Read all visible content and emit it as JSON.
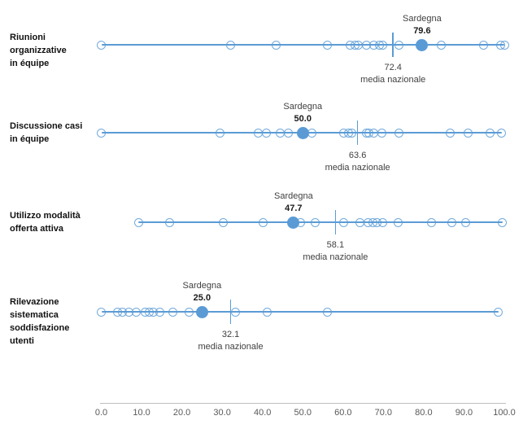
{
  "colors": {
    "accent": "#5B9BD5",
    "circle_stroke": "rgba(91,155,213,0.85)",
    "axis_line": "#BFBFBF",
    "label_text": "#111111",
    "annotation_text": "#404040",
    "axis_text": "#595959"
  },
  "chart_data": {
    "type": "scatter",
    "subtype": "horizontal-dot-plot",
    "title": "",
    "xlabel": "",
    "ylabel": "",
    "xlim": [
      0,
      100
    ],
    "grid": false,
    "legend_position": "none",
    "x_ticks": [
      "0.0",
      "10.0",
      "20.0",
      "30.0",
      "40.0",
      "50.0",
      "60.0",
      "70.0",
      "80.0",
      "90.0",
      "100.0"
    ],
    "highlight_series_name": "Sardegna",
    "mean_series_label": "media nazionale",
    "rows": [
      {
        "label": "Riunioni organizzative in équipe",
        "label_lines": [
          "Riunioni",
          "organizzative",
          "in équipe"
        ],
        "highlight": {
          "name": "Sardegna",
          "value": 79.6,
          "value_label": "79.6"
        },
        "mean": {
          "label": "media nazionale",
          "value": 72.4,
          "value_label": "72.4"
        },
        "points": [
          0,
          32.0,
          43.3,
          56.2,
          61.7,
          62.9,
          63.8,
          65.7,
          67.6,
          69.1,
          69.9,
          73.8,
          84.3,
          94.8,
          99.0,
          100.0
        ]
      },
      {
        "label": "Discussione casi in équipe",
        "label_lines": [
          "Discussione casi",
          "in équipe"
        ],
        "highlight": {
          "name": "Sardegna",
          "value": 50.0,
          "value_label": "50.0"
        },
        "mean": {
          "label": "media nazionale",
          "value": 63.6,
          "value_label": "63.6"
        },
        "points": [
          0,
          29.5,
          39.0,
          41.0,
          44.5,
          46.5,
          52.2,
          60.2,
          61.3,
          62.1,
          65.7,
          66.4,
          67.7,
          69.7,
          73.8,
          86.6,
          91.1,
          96.5,
          99.3
        ]
      },
      {
        "label": "Utilizzo modalità offerta attiva",
        "label_lines": [
          "Utilizzo modalità",
          "offerta attiva"
        ],
        "highlight": {
          "name": "Sardegna",
          "value": 47.7,
          "value_label": "47.7"
        },
        "mean": {
          "label": "media nazionale",
          "value": 58.1,
          "value_label": "58.1"
        },
        "points": [
          9.2,
          16.9,
          30.2,
          40.1,
          49.5,
          53.1,
          60.2,
          64.2,
          66.1,
          67.4,
          68.4,
          69.9,
          73.6,
          82.0,
          87.0,
          90.4,
          99.5
        ]
      },
      {
        "label": "Rilevazione sistematica soddisfazione utenti",
        "label_lines": [
          "Rilevazione",
          "sistematica",
          "soddisfazione",
          "utenti"
        ],
        "highlight": {
          "name": "Sardegna",
          "value": 25.0,
          "value_label": "25.0"
        },
        "mean": {
          "label": "media nazionale",
          "value": 32.1,
          "value_label": "32.1"
        },
        "points": [
          0,
          4.0,
          5.2,
          6.8,
          8.7,
          10.8,
          12.0,
          13.0,
          14.5,
          17.8,
          21.8,
          33.4,
          41.1,
          56.1,
          98.5
        ]
      }
    ]
  }
}
